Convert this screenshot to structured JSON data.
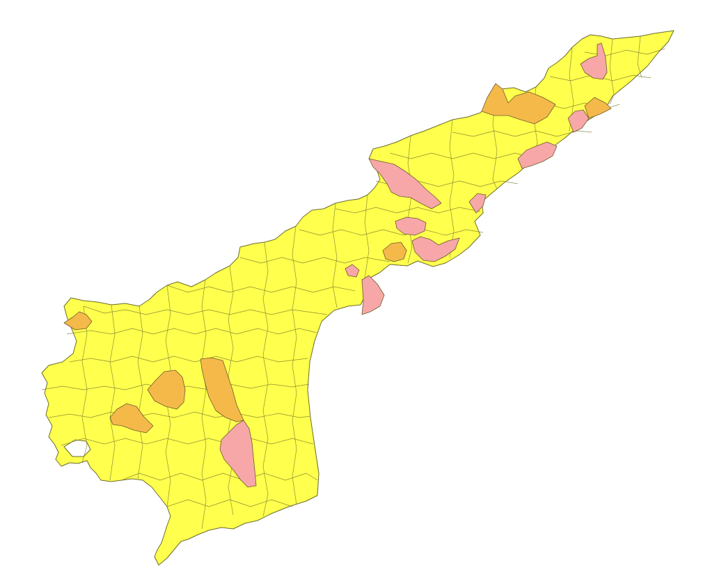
{
  "map": {
    "region_name": "Andhra Pradesh",
    "fill_categories": [
      {
        "key": "low",
        "color": "#FFFF4D"
      },
      {
        "key": "medium",
        "color": "#F5B94A"
      },
      {
        "key": "high",
        "color": "#F7A7A7"
      }
    ],
    "counts_by_category": {
      "medium": 7,
      "high": 10
    }
  }
}
